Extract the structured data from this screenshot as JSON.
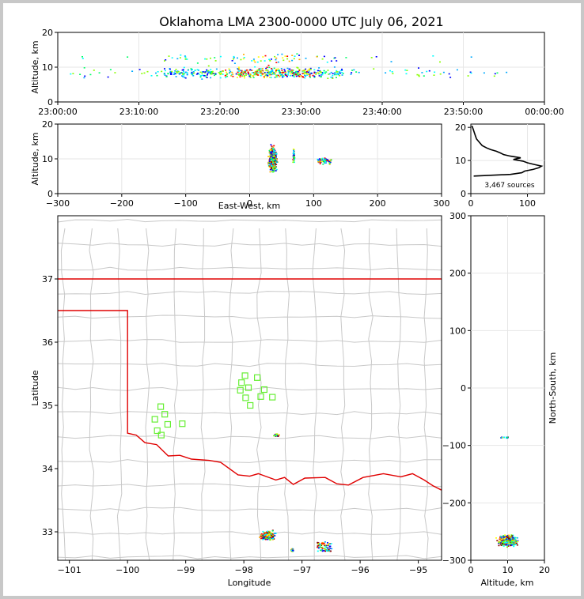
{
  "chart_data": [
    {
      "panel": "time-altitude",
      "type": "scatter",
      "title": "Oklahoma LMA 2300-0000 UTC July 06, 2021",
      "ylabel": "Altitude, km",
      "xlabel": "",
      "x_ticks": [
        "23:00:00",
        "23:10:00",
        "23:20:00",
        "23:30:00",
        "23:40:00",
        "23:50:00",
        "00:00:00"
      ],
      "y_ticks": [
        "0",
        "10",
        "20"
      ],
      "xlim": [
        0,
        60
      ],
      "ylim": [
        0,
        20
      ],
      "x_units": "minutes after 23:00 UTC",
      "grid": true
    },
    {
      "panel": "east-west-altitude",
      "type": "scatter",
      "xlabel": "East-West, km",
      "ylabel": "Altitude, km",
      "x_ticks": [
        "−300",
        "−200",
        "−100",
        "0",
        "100",
        "200",
        "300"
      ],
      "y_ticks": [
        "0",
        "10",
        "20"
      ],
      "xlim": [
        -300,
        300
      ],
      "ylim": [
        0,
        20
      ],
      "grid": true
    },
    {
      "panel": "altitude-histogram",
      "type": "line",
      "annotation": "3,467 sources",
      "x_ticks": [
        "0",
        "100"
      ],
      "y_ticks": [
        "0",
        "10",
        "20"
      ],
      "xlim": [
        0,
        130
      ],
      "ylim": [
        0,
        21
      ],
      "profile": [
        {
          "alt": 5.3,
          "count": 5
        },
        {
          "alt": 5.8,
          "count": 70
        },
        {
          "alt": 6.3,
          "count": 90
        },
        {
          "alt": 6.8,
          "count": 95
        },
        {
          "alt": 7.3,
          "count": 110
        },
        {
          "alt": 7.8,
          "count": 120
        },
        {
          "alt": 8.3,
          "count": 125
        },
        {
          "alt": 8.8,
          "count": 112
        },
        {
          "alt": 9.3,
          "count": 100
        },
        {
          "alt": 9.8,
          "count": 92
        },
        {
          "alt": 10.3,
          "count": 75
        },
        {
          "alt": 10.8,
          "count": 88
        },
        {
          "alt": 11.3,
          "count": 70
        },
        {
          "alt": 11.8,
          "count": 58
        },
        {
          "alt": 12.3,
          "count": 52
        },
        {
          "alt": 12.8,
          "count": 45
        },
        {
          "alt": 13.3,
          "count": 35
        },
        {
          "alt": 13.8,
          "count": 28
        },
        {
          "alt": 14.5,
          "count": 20
        },
        {
          "alt": 15.5,
          "count": 15
        },
        {
          "alt": 16.5,
          "count": 10
        },
        {
          "alt": 17.5,
          "count": 8
        },
        {
          "alt": 18.5,
          "count": 6
        },
        {
          "alt": 19.5,
          "count": 4
        },
        {
          "alt": 20.5,
          "count": 2
        }
      ]
    },
    {
      "panel": "plan-view",
      "type": "map",
      "xlabel": "Longitude",
      "ylabel": "Latitude",
      "x_ticks": [
        "−101",
        "−100",
        "−99",
        "−98",
        "−97",
        "−96",
        "−95"
      ],
      "y_ticks": [
        "33",
        "34",
        "35",
        "36",
        "37"
      ],
      "xlim": [
        -101.2,
        -94.6
      ],
      "ylim": [
        32.55,
        38.0
      ],
      "stations": [
        {
          "lon": -97.98,
          "lat": 35.47
        },
        {
          "lon": -97.77,
          "lat": 35.44
        },
        {
          "lon": -98.04,
          "lat": 35.36
        },
        {
          "lon": -97.92,
          "lat": 35.28
        },
        {
          "lon": -98.06,
          "lat": 35.24
        },
        {
          "lon": -97.65,
          "lat": 35.25
        },
        {
          "lon": -97.97,
          "lat": 35.12
        },
        {
          "lon": -97.71,
          "lat": 35.14
        },
        {
          "lon": -97.51,
          "lat": 35.13
        },
        {
          "lon": -97.89,
          "lat": 35.0
        },
        {
          "lon": -99.43,
          "lat": 34.98
        },
        {
          "lon": -99.36,
          "lat": 34.86
        },
        {
          "lon": -99.53,
          "lat": 34.78
        },
        {
          "lon": -99.31,
          "lat": 34.7
        },
        {
          "lon": -99.06,
          "lat": 34.71
        },
        {
          "lon": -99.49,
          "lat": 34.6
        },
        {
          "lon": -99.42,
          "lat": 34.53
        }
      ]
    },
    {
      "panel": "altitude-north-south",
      "type": "scatter",
      "xlabel": "Altitude, km",
      "ylabel": "North-South, km",
      "x_ticks": [
        "0",
        "10",
        "20"
      ],
      "y_ticks": [
        "−300",
        "−200",
        "−100",
        "0",
        "100",
        "200",
        "300"
      ],
      "xlim": [
        0,
        20
      ],
      "ylim": [
        -300,
        300
      ],
      "grid": true
    }
  ],
  "colors": {
    "state_border": "#e00000",
    "county_lines": "#c8c8c8",
    "station_marker": "#66ee33",
    "source_palette": [
      "#0000ff",
      "#00aaff",
      "#00ffff",
      "#00ff66",
      "#88ff00",
      "#ffff00",
      "#ffaa00",
      "#ff0000",
      "#880000"
    ]
  }
}
